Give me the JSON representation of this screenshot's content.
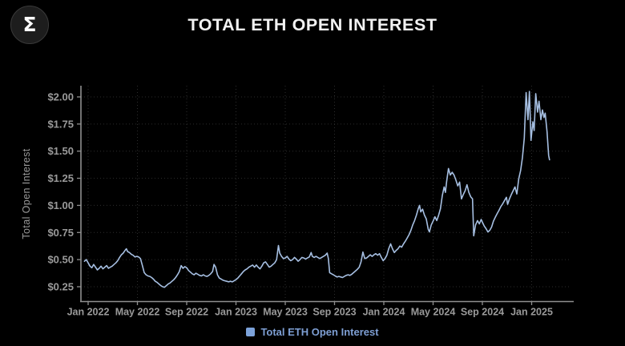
{
  "header": {
    "logo_symbol": "Σ",
    "title": "TOTAL ETH OPEN INTEREST"
  },
  "legend": {
    "label": "Total ETH Open Interest",
    "marker_color": "#7ca2da",
    "text_color": "#7e9fd4"
  },
  "colors": {
    "background": "#000000",
    "grid": "#2d2d2d",
    "axis": "#8f8f8f",
    "tick_label": "#9a9a9a",
    "title": "#f2f2f2",
    "line": "#a6bfe2"
  },
  "chart_data": {
    "type": "line",
    "title": "TOTAL ETH OPEN INTEREST",
    "xlabel": "",
    "ylabel": "Total Open Interest",
    "x_unit": "months since Jan 2022",
    "grid": true,
    "legend_position": "bottom-center",
    "ylim": [
      0.11,
      2.1
    ],
    "xlim": [
      -0.6,
      39.2
    ],
    "y_ticks": [
      {
        "v": 0.25,
        "label": "$0.25"
      },
      {
        "v": 0.5,
        "label": "$0.50"
      },
      {
        "v": 0.75,
        "label": "$0.75"
      },
      {
        "v": 1.0,
        "label": "$1.00"
      },
      {
        "v": 1.25,
        "label": "$1.25"
      },
      {
        "v": 1.5,
        "label": "$1.50"
      },
      {
        "v": 1.75,
        "label": "$1.75"
      },
      {
        "v": 2.0,
        "label": "$2.00"
      }
    ],
    "x_ticks": [
      {
        "m": 0,
        "label": "Jan 2022"
      },
      {
        "m": 4,
        "label": "May 2022"
      },
      {
        "m": 8,
        "label": "Sep 2022"
      },
      {
        "m": 12,
        "label": "Jan 2023"
      },
      {
        "m": 16,
        "label": "May 2023"
      },
      {
        "m": 20,
        "label": "Sep 2023"
      },
      {
        "m": 24,
        "label": "Jan 2024"
      },
      {
        "m": 28,
        "label": "May 2024"
      },
      {
        "m": 32,
        "label": "Sep 2024"
      },
      {
        "m": 36,
        "label": "Jan 2025"
      }
    ],
    "series": [
      {
        "name": "Total ETH Open Interest",
        "color": "#a6bfe2",
        "points": [
          [
            -0.3,
            0.485
          ],
          [
            -0.15,
            0.5
          ],
          [
            0.0,
            0.47
          ],
          [
            0.15,
            0.44
          ],
          [
            0.3,
            0.425
          ],
          [
            0.45,
            0.455
          ],
          [
            0.6,
            0.43
          ],
          [
            0.75,
            0.405
          ],
          [
            0.9,
            0.42
          ],
          [
            1.05,
            0.44
          ],
          [
            1.2,
            0.415
          ],
          [
            1.35,
            0.43
          ],
          [
            1.5,
            0.445
          ],
          [
            1.65,
            0.42
          ],
          [
            1.8,
            0.43
          ],
          [
            1.95,
            0.44
          ],
          [
            2.1,
            0.455
          ],
          [
            2.25,
            0.47
          ],
          [
            2.4,
            0.49
          ],
          [
            2.55,
            0.52
          ],
          [
            2.7,
            0.545
          ],
          [
            2.85,
            0.56
          ],
          [
            3.0,
            0.585
          ],
          [
            3.1,
            0.6
          ],
          [
            3.2,
            0.575
          ],
          [
            3.35,
            0.565
          ],
          [
            3.5,
            0.55
          ],
          [
            3.65,
            0.54
          ],
          [
            3.8,
            0.525
          ],
          [
            3.95,
            0.53
          ],
          [
            4.1,
            0.525
          ],
          [
            4.25,
            0.51
          ],
          [
            4.4,
            0.445
          ],
          [
            4.55,
            0.38
          ],
          [
            4.7,
            0.36
          ],
          [
            4.85,
            0.35
          ],
          [
            5.0,
            0.345
          ],
          [
            5.15,
            0.335
          ],
          [
            5.3,
            0.32
          ],
          [
            5.45,
            0.3
          ],
          [
            5.6,
            0.29
          ],
          [
            5.75,
            0.275
          ],
          [
            5.9,
            0.26
          ],
          [
            6.05,
            0.25
          ],
          [
            6.2,
            0.245
          ],
          [
            6.35,
            0.26
          ],
          [
            6.5,
            0.275
          ],
          [
            6.65,
            0.285
          ],
          [
            6.8,
            0.3
          ],
          [
            6.95,
            0.315
          ],
          [
            7.1,
            0.335
          ],
          [
            7.25,
            0.36
          ],
          [
            7.4,
            0.39
          ],
          [
            7.55,
            0.445
          ],
          [
            7.7,
            0.42
          ],
          [
            7.85,
            0.435
          ],
          [
            8.0,
            0.425
          ],
          [
            8.15,
            0.4
          ],
          [
            8.3,
            0.385
          ],
          [
            8.45,
            0.37
          ],
          [
            8.6,
            0.36
          ],
          [
            8.75,
            0.375
          ],
          [
            8.9,
            0.365
          ],
          [
            9.05,
            0.355
          ],
          [
            9.2,
            0.35
          ],
          [
            9.35,
            0.36
          ],
          [
            9.5,
            0.35
          ],
          [
            9.65,
            0.345
          ],
          [
            9.8,
            0.355
          ],
          [
            9.95,
            0.37
          ],
          [
            10.1,
            0.39
          ],
          [
            10.22,
            0.455
          ],
          [
            10.35,
            0.43
          ],
          [
            10.5,
            0.36
          ],
          [
            10.65,
            0.33
          ],
          [
            10.8,
            0.32
          ],
          [
            10.95,
            0.31
          ],
          [
            11.1,
            0.305
          ],
          [
            11.25,
            0.3
          ],
          [
            11.4,
            0.295
          ],
          [
            11.55,
            0.3
          ],
          [
            11.7,
            0.295
          ],
          [
            11.85,
            0.305
          ],
          [
            12.0,
            0.315
          ],
          [
            12.15,
            0.33
          ],
          [
            12.3,
            0.35
          ],
          [
            12.45,
            0.37
          ],
          [
            12.6,
            0.39
          ],
          [
            12.75,
            0.405
          ],
          [
            12.9,
            0.415
          ],
          [
            13.05,
            0.43
          ],
          [
            13.2,
            0.44
          ],
          [
            13.35,
            0.45
          ],
          [
            13.5,
            0.43
          ],
          [
            13.65,
            0.45
          ],
          [
            13.8,
            0.43
          ],
          [
            13.95,
            0.415
          ],
          [
            14.1,
            0.44
          ],
          [
            14.25,
            0.47
          ],
          [
            14.4,
            0.48
          ],
          [
            14.55,
            0.455
          ],
          [
            14.7,
            0.43
          ],
          [
            14.85,
            0.44
          ],
          [
            15.0,
            0.455
          ],
          [
            15.15,
            0.47
          ],
          [
            15.3,
            0.5
          ],
          [
            15.45,
            0.63
          ],
          [
            15.55,
            0.56
          ],
          [
            15.7,
            0.53
          ],
          [
            15.85,
            0.51
          ],
          [
            16.0,
            0.515
          ],
          [
            16.15,
            0.53
          ],
          [
            16.3,
            0.505
          ],
          [
            16.45,
            0.49
          ],
          [
            16.6,
            0.5
          ],
          [
            16.75,
            0.52
          ],
          [
            16.9,
            0.505
          ],
          [
            17.05,
            0.485
          ],
          [
            17.2,
            0.5
          ],
          [
            17.35,
            0.52
          ],
          [
            17.5,
            0.515
          ],
          [
            17.65,
            0.505
          ],
          [
            17.8,
            0.515
          ],
          [
            17.95,
            0.525
          ],
          [
            18.1,
            0.565
          ],
          [
            18.2,
            0.53
          ],
          [
            18.35,
            0.52
          ],
          [
            18.5,
            0.53
          ],
          [
            18.65,
            0.52
          ],
          [
            18.8,
            0.51
          ],
          [
            18.95,
            0.52
          ],
          [
            19.1,
            0.53
          ],
          [
            19.25,
            0.54
          ],
          [
            19.4,
            0.56
          ],
          [
            19.5,
            0.51
          ],
          [
            19.6,
            0.38
          ],
          [
            19.75,
            0.37
          ],
          [
            19.9,
            0.36
          ],
          [
            20.05,
            0.35
          ],
          [
            20.2,
            0.34
          ],
          [
            20.35,
            0.345
          ],
          [
            20.5,
            0.34
          ],
          [
            20.65,
            0.335
          ],
          [
            20.8,
            0.345
          ],
          [
            20.95,
            0.355
          ],
          [
            21.1,
            0.36
          ],
          [
            21.25,
            0.355
          ],
          [
            21.4,
            0.365
          ],
          [
            21.55,
            0.38
          ],
          [
            21.7,
            0.395
          ],
          [
            21.85,
            0.41
          ],
          [
            22.0,
            0.43
          ],
          [
            22.15,
            0.48
          ],
          [
            22.3,
            0.57
          ],
          [
            22.45,
            0.51
          ],
          [
            22.6,
            0.515
          ],
          [
            22.75,
            0.53
          ],
          [
            22.9,
            0.545
          ],
          [
            23.05,
            0.53
          ],
          [
            23.2,
            0.545
          ],
          [
            23.35,
            0.555
          ],
          [
            23.5,
            0.54
          ],
          [
            23.65,
            0.555
          ],
          [
            23.8,
            0.52
          ],
          [
            23.95,
            0.49
          ],
          [
            24.1,
            0.51
          ],
          [
            24.25,
            0.54
          ],
          [
            24.4,
            0.6
          ],
          [
            24.55,
            0.645
          ],
          [
            24.7,
            0.6
          ],
          [
            24.85,
            0.565
          ],
          [
            25.0,
            0.585
          ],
          [
            25.15,
            0.6
          ],
          [
            25.3,
            0.625
          ],
          [
            25.45,
            0.615
          ],
          [
            25.6,
            0.645
          ],
          [
            25.75,
            0.67
          ],
          [
            25.9,
            0.7
          ],
          [
            26.05,
            0.73
          ],
          [
            26.2,
            0.77
          ],
          [
            26.35,
            0.82
          ],
          [
            26.5,
            0.86
          ],
          [
            26.65,
            0.91
          ],
          [
            26.8,
            0.97
          ],
          [
            26.9,
            1.0
          ],
          [
            27.0,
            0.94
          ],
          [
            27.15,
            0.965
          ],
          [
            27.3,
            0.91
          ],
          [
            27.45,
            0.875
          ],
          [
            27.6,
            0.78
          ],
          [
            27.7,
            0.755
          ],
          [
            27.85,
            0.82
          ],
          [
            28.0,
            0.855
          ],
          [
            28.15,
            0.895
          ],
          [
            28.3,
            0.86
          ],
          [
            28.45,
            0.91
          ],
          [
            28.6,
            0.97
          ],
          [
            28.75,
            1.09
          ],
          [
            28.9,
            1.17
          ],
          [
            29.0,
            1.12
          ],
          [
            29.1,
            1.22
          ],
          [
            29.25,
            1.34
          ],
          [
            29.4,
            1.28
          ],
          [
            29.55,
            1.305
          ],
          [
            29.7,
            1.28
          ],
          [
            29.85,
            1.235
          ],
          [
            30.0,
            1.18
          ],
          [
            30.15,
            1.215
          ],
          [
            30.3,
            1.06
          ],
          [
            30.45,
            1.1
          ],
          [
            30.6,
            1.135
          ],
          [
            30.75,
            1.19
          ],
          [
            30.9,
            1.12
          ],
          [
            31.05,
            1.08
          ],
          [
            31.2,
            1.06
          ],
          [
            31.3,
            0.72
          ],
          [
            31.45,
            0.82
          ],
          [
            31.6,
            0.86
          ],
          [
            31.75,
            0.83
          ],
          [
            31.9,
            0.87
          ],
          [
            32.0,
            0.845
          ],
          [
            32.15,
            0.81
          ],
          [
            32.3,
            0.785
          ],
          [
            32.45,
            0.755
          ],
          [
            32.6,
            0.77
          ],
          [
            32.75,
            0.8
          ],
          [
            32.9,
            0.855
          ],
          [
            33.05,
            0.89
          ],
          [
            33.2,
            0.925
          ],
          [
            33.35,
            0.955
          ],
          [
            33.5,
            0.99
          ],
          [
            33.65,
            1.015
          ],
          [
            33.8,
            1.045
          ],
          [
            33.95,
            1.075
          ],
          [
            34.05,
            1.01
          ],
          [
            34.2,
            1.06
          ],
          [
            34.35,
            1.1
          ],
          [
            34.5,
            1.135
          ],
          [
            34.65,
            1.17
          ],
          [
            34.8,
            1.105
          ],
          [
            34.95,
            1.245
          ],
          [
            35.1,
            1.32
          ],
          [
            35.25,
            1.44
          ],
          [
            35.4,
            1.62
          ],
          [
            35.55,
            2.04
          ],
          [
            35.7,
            1.79
          ],
          [
            35.82,
            2.05
          ],
          [
            35.95,
            1.6
          ],
          [
            36.1,
            1.77
          ],
          [
            36.2,
            1.69
          ],
          [
            36.33,
            2.03
          ],
          [
            36.48,
            1.86
          ],
          [
            36.6,
            1.96
          ],
          [
            36.75,
            1.79
          ],
          [
            36.88,
            1.88
          ],
          [
            37.0,
            1.81
          ],
          [
            37.1,
            1.85
          ],
          [
            37.25,
            1.68
          ],
          [
            37.38,
            1.46
          ],
          [
            37.45,
            1.42
          ]
        ]
      }
    ]
  }
}
